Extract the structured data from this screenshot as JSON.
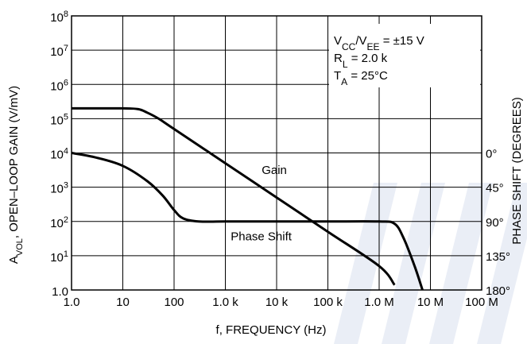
{
  "chart_data": {
    "type": "line",
    "xlabel": "f, FREQUENCY (Hz)",
    "ylabel_left": "A",
    "ylabel_left_sub": "VOL",
    "ylabel_left_rest": ", OPEN–LOOP GAIN (V/mV)",
    "ylabel_right": "PHASE SHIFT (DEGREES)",
    "x_scale": "log",
    "xlim": [
      1,
      100000000
    ],
    "x_ticks": [
      {
        "value": 1,
        "label": "1.0"
      },
      {
        "value": 10,
        "label": "10"
      },
      {
        "value": 100,
        "label": "100"
      },
      {
        "value": 1000,
        "label": "1.0 k"
      },
      {
        "value": 10000,
        "label": "10 k"
      },
      {
        "value": 100000,
        "label": "100 k"
      },
      {
        "value": 1000000,
        "label": "1.0 M"
      },
      {
        "value": 10000000,
        "label": "10 M"
      },
      {
        "value": 100000000,
        "label": "100 M"
      }
    ],
    "y_scale": "log",
    "ylim": [
      1,
      100000000
    ],
    "y_ticks": [
      {
        "value": 1,
        "base": "1.0",
        "exp": ""
      },
      {
        "value": 10,
        "base": "10",
        "exp": "1"
      },
      {
        "value": 100,
        "base": "10",
        "exp": "2"
      },
      {
        "value": 1000,
        "base": "10",
        "exp": "3"
      },
      {
        "value": 10000,
        "base": "10",
        "exp": "4"
      },
      {
        "value": 100000,
        "base": "10",
        "exp": "5"
      },
      {
        "value": 1000000,
        "base": "10",
        "exp": "6"
      },
      {
        "value": 10000000,
        "base": "10",
        "exp": "7"
      },
      {
        "value": 100000000,
        "base": "10",
        "exp": "8"
      }
    ],
    "y2_ticks": [
      {
        "value": 0,
        "label": "0°"
      },
      {
        "value": 45,
        "label": "45°"
      },
      {
        "value": 90,
        "label": "90°"
      },
      {
        "value": 135,
        "label": "135°"
      },
      {
        "value": 180,
        "label": "180°"
      }
    ],
    "grid": true,
    "series": [
      {
        "name": "Gain",
        "axis": "left",
        "x": [
          1,
          10,
          20,
          30,
          50,
          100,
          1000,
          10000,
          100000,
          1000000,
          2000000
        ],
        "y": [
          200000,
          200000,
          190000,
          150000,
          100000,
          50000,
          5000,
          500,
          50,
          5,
          1.4
        ]
      },
      {
        "name": "Phase Shift",
        "axis": "right",
        "x": [
          1,
          3,
          10,
          30,
          60,
          100,
          150,
          300,
          1000,
          10000,
          100000,
          1000000,
          2000000,
          3000000,
          5000000,
          7000000
        ],
        "y": [
          0,
          6,
          17,
          37,
          56,
          75,
          86,
          90,
          90,
          90,
          90,
          90,
          93,
          112,
          150,
          180
        ]
      }
    ],
    "annotations": [
      {
        "parts": [
          [
            "V",
            ""
          ],
          [
            "CC",
            "sub"
          ],
          [
            "/V",
            ""
          ],
          [
            "EE",
            "sub"
          ],
          [
            " = ±15 V",
            ""
          ]
        ]
      },
      {
        "parts": [
          [
            "R",
            ""
          ],
          [
            "L",
            "sub"
          ],
          [
            " = 2.0 k",
            ""
          ]
        ]
      },
      {
        "parts": [
          [
            "T",
            ""
          ],
          [
            "A",
            "sub"
          ],
          [
            " = 25°C",
            ""
          ]
        ]
      }
    ]
  }
}
